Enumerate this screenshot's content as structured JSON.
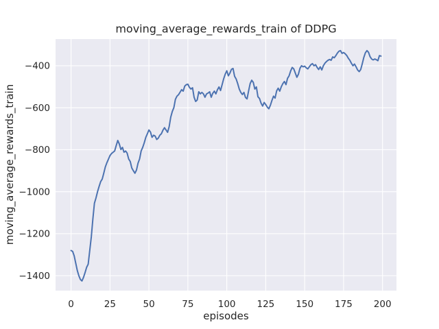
{
  "figure": {
    "title": "moving_average_rewards_train of DDPG",
    "xlabel": "episodes",
    "ylabel": "moving_average_rewards_train"
  },
  "colors": {
    "line": "#4c72b0",
    "plot_background": "#eaeaf2",
    "grid": "#ffffff",
    "text": "#262626",
    "figure_background": "#ffffff"
  },
  "chart_data": {
    "type": "line",
    "title": "moving_average_rewards_train of DDPG",
    "xlabel": "episodes",
    "ylabel": "moving_average_rewards_train",
    "legend": null,
    "grid": true,
    "xticks": [
      0,
      25,
      50,
      75,
      100,
      125,
      150,
      175,
      200
    ],
    "yticks": [
      -400,
      -600,
      -800,
      -1000,
      -1200,
      -1400
    ],
    "xlim": [
      -9.95,
      208.95
    ],
    "ylim": [
      -1471,
      -273
    ],
    "x_start": 0,
    "x_step": 1,
    "series": [
      {
        "name": "moving_average_rewards_train",
        "values": [
          -1280,
          -1284,
          -1305,
          -1340,
          -1375,
          -1400,
          -1418,
          -1425,
          -1408,
          -1385,
          -1360,
          -1345,
          -1280,
          -1215,
          -1130,
          -1055,
          -1030,
          -1000,
          -975,
          -952,
          -940,
          -912,
          -882,
          -862,
          -845,
          -828,
          -818,
          -812,
          -806,
          -780,
          -756,
          -773,
          -799,
          -789,
          -812,
          -806,
          -816,
          -844,
          -856,
          -887,
          -900,
          -912,
          -897,
          -864,
          -844,
          -806,
          -789,
          -767,
          -741,
          -724,
          -706,
          -716,
          -741,
          -731,
          -735,
          -751,
          -745,
          -731,
          -724,
          -707,
          -695,
          -706,
          -717,
          -690,
          -645,
          -618,
          -600,
          -560,
          -545,
          -538,
          -526,
          -514,
          -521,
          -497,
          -490,
          -488,
          -503,
          -511,
          -505,
          -550,
          -570,
          -563,
          -524,
          -534,
          -527,
          -534,
          -550,
          -534,
          -530,
          -524,
          -550,
          -531,
          -521,
          -534,
          -514,
          -501,
          -518,
          -490,
          -462,
          -440,
          -424,
          -448,
          -435,
          -417,
          -413,
          -450,
          -463,
          -485,
          -511,
          -527,
          -537,
          -527,
          -551,
          -558,
          -520,
          -485,
          -469,
          -479,
          -511,
          -501,
          -548,
          -556,
          -578,
          -592,
          -575,
          -585,
          -597,
          -605,
          -588,
          -565,
          -545,
          -554,
          -520,
          -507,
          -521,
          -500,
          -485,
          -475,
          -490,
          -460,
          -448,
          -425,
          -408,
          -415,
          -435,
          -455,
          -440,
          -412,
          -400,
          -405,
          -402,
          -410,
          -415,
          -405,
          -395,
          -390,
          -400,
          -395,
          -408,
          -418,
          -405,
          -420,
          -400,
          -388,
          -380,
          -374,
          -370,
          -374,
          -358,
          -362,
          -352,
          -340,
          -331,
          -328,
          -341,
          -337,
          -343,
          -351,
          -364,
          -374,
          -388,
          -400,
          -392,
          -405,
          -420,
          -428,
          -418,
          -390,
          -360,
          -338,
          -328,
          -336,
          -357,
          -368,
          -372,
          -368,
          -371,
          -376,
          -352,
          -354
        ]
      }
    ]
  }
}
